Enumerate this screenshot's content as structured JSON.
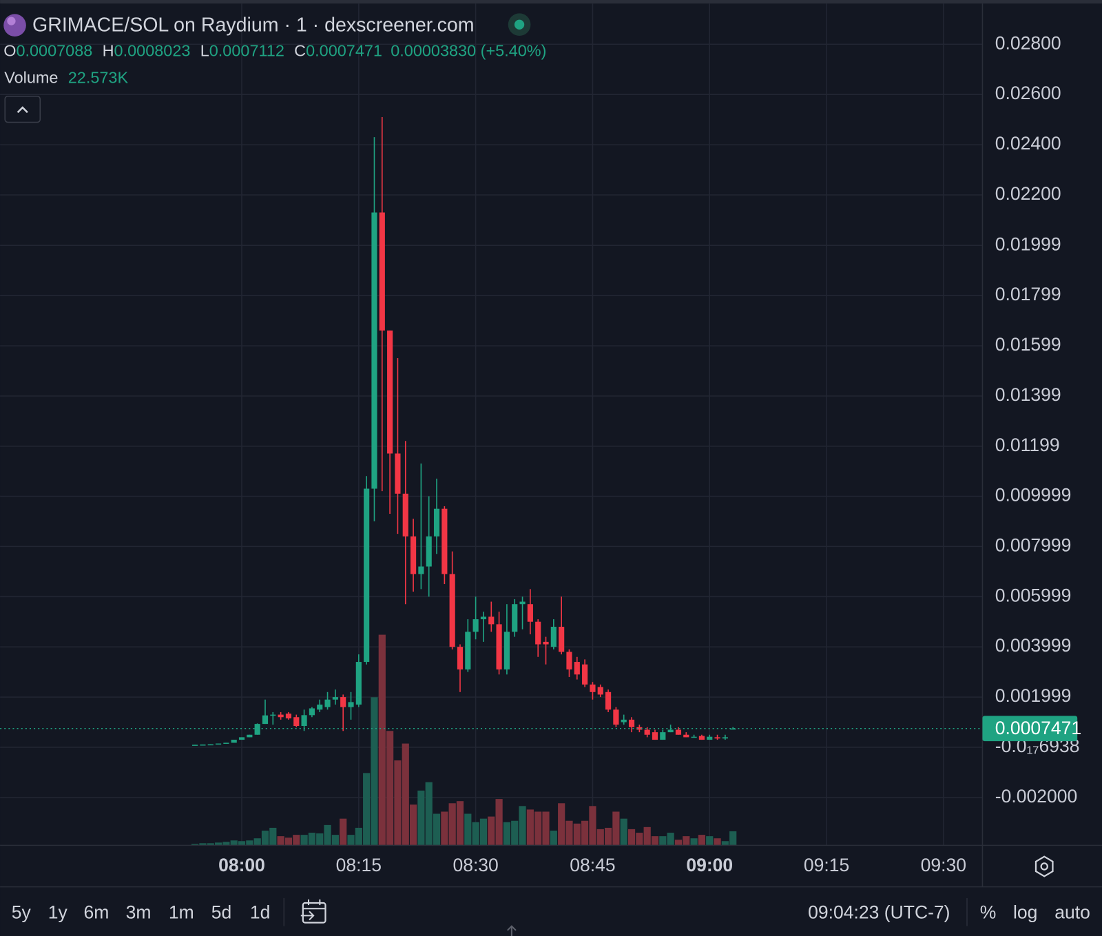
{
  "chart_data": {
    "type": "candlestick",
    "title": "GRIMACE/SOL on Raydium · 1 · dexscreener.com",
    "ohlc_letters": [
      "O",
      "H",
      "L",
      "C"
    ],
    "change_label": "0.00003830 (+5.40%)",
    "volume_name": "Volume",
    "volume_legend_label": "22.573K",
    "up_color": "#1fa382",
    "down_color": "#f23645",
    "volume_up_color": "#1d5e52",
    "volume_down_color": "#7b313c",
    "grid": true,
    "x": [
      "07:54",
      "07:55",
      "07:56",
      "07:57",
      "07:58",
      "07:59",
      "08:00",
      "08:01",
      "08:02",
      "08:03",
      "08:04",
      "08:05",
      "08:06",
      "08:07",
      "08:08",
      "08:09",
      "08:10",
      "08:11",
      "08:12",
      "08:13",
      "08:14",
      "08:15",
      "08:16",
      "08:17",
      "08:18",
      "08:19",
      "08:20",
      "08:21",
      "08:22",
      "08:23",
      "08:24",
      "08:25",
      "08:26",
      "08:27",
      "08:28",
      "08:29",
      "08:30",
      "08:31",
      "08:32",
      "08:33",
      "08:34",
      "08:35",
      "08:36",
      "08:37",
      "08:38",
      "08:39",
      "08:40",
      "08:41",
      "08:42",
      "08:43",
      "08:44",
      "08:45",
      "08:46",
      "08:47",
      "08:48",
      "08:49",
      "08:50",
      "08:51",
      "08:52",
      "08:53",
      "08:54",
      "08:55",
      "08:56",
      "08:57",
      "08:58",
      "08:59",
      "09:00",
      "09:01",
      "09:02",
      "09:03"
    ],
    "open": [
      9e-05,
      0.0001,
      0.00011,
      0.00012,
      0.00015,
      0.00018,
      0.0003,
      0.0004,
      0.0005,
      0.00093,
      0.00127,
      0.0013,
      0.00134,
      0.0012,
      0.00085,
      0.00128,
      0.0015,
      0.0016,
      0.0019,
      0.002,
      0.0016,
      0.0017,
      0.0034,
      0.0103,
      0.0213,
      0.0166,
      0.0117,
      0.0101,
      0.0084,
      0.0069,
      0.0072,
      0.0084,
      0.0095,
      0.0069,
      0.004,
      0.0031,
      0.0046,
      0.0051,
      0.0052,
      0.0049,
      0.0031,
      0.0046,
      0.0057,
      0.0057,
      0.005,
      0.0042,
      0.004,
      0.0048,
      0.0038,
      0.0034,
      0.0033,
      0.0025,
      0.0024,
      0.0022,
      0.0015,
      0.001,
      0.0011,
      0.0008,
      0.0007,
      0.0006,
      0.0003,
      0.0006,
      0.0007,
      0.0005,
      0.0004,
      0.00045,
      0.0003,
      0.0004,
      0.00035,
      0.0007088
    ],
    "high": [
      0.0001,
      0.00011,
      0.00012,
      0.00015,
      0.00018,
      0.0003,
      0.0004,
      0.0005,
      0.00095,
      0.0019,
      0.0014,
      0.0014,
      0.0014,
      0.0013,
      0.0015,
      0.0016,
      0.0019,
      0.0022,
      0.0023,
      0.0021,
      0.0022,
      0.0037,
      0.0108,
      0.0243,
      0.0251,
      0.0166,
      0.0155,
      0.0122,
      0.0091,
      0.0113,
      0.01,
      0.0107,
      0.0096,
      0.0078,
      0.0041,
      0.0051,
      0.006,
      0.0054,
      0.0058,
      0.0054,
      0.0057,
      0.0059,
      0.006,
      0.0063,
      0.0051,
      0.0044,
      0.0051,
      0.006,
      0.0039,
      0.0036,
      0.0035,
      0.0026,
      0.0025,
      0.0023,
      0.0016,
      0.0013,
      0.0012,
      0.0009,
      0.0008,
      0.0007,
      0.0007,
      0.0009,
      0.0008,
      0.0006,
      0.0005,
      0.0005,
      0.0005,
      0.0005,
      0.0005,
      0.0008023
    ],
    "low": [
      9e-05,
      0.0001,
      0.00011,
      0.00012,
      0.00015,
      0.00018,
      0.0003,
      0.0004,
      0.0005,
      0.00093,
      0.0009,
      0.0011,
      0.0011,
      0.0008,
      0.00065,
      0.0012,
      0.0014,
      0.0015,
      0.0017,
      0.00065,
      0.0011,
      0.0016,
      0.0033,
      0.009,
      0.0102,
      0.0093,
      0.0085,
      0.0057,
      0.0062,
      0.0063,
      0.006,
      0.0077,
      0.0065,
      0.0039,
      0.0022,
      0.003,
      0.0043,
      0.0042,
      0.0046,
      0.0029,
      0.0029,
      0.0044,
      0.0047,
      0.0045,
      0.0036,
      0.0033,
      0.0039,
      0.0037,
      0.0028,
      0.0027,
      0.0024,
      0.0019,
      0.002,
      0.0014,
      0.0008,
      0.0009,
      0.0006,
      0.0006,
      0.0004,
      0.0003,
      0.0003,
      0.0006,
      0.0005,
      0.0004,
      0.0004,
      0.0003,
      0.0003,
      0.0003,
      0.0003,
      0.0007112
    ],
    "close": [
      0.0001,
      0.00011,
      0.00012,
      0.00015,
      0.00018,
      0.0003,
      0.0004,
      0.0005,
      0.00093,
      0.00127,
      0.0013,
      0.0012,
      0.00115,
      0.00085,
      0.00128,
      0.00155,
      0.0017,
      0.0019,
      0.002,
      0.0016,
      0.0018,
      0.0034,
      0.0103,
      0.0213,
      0.0166,
      0.0117,
      0.0101,
      0.0084,
      0.0069,
      0.0072,
      0.0084,
      0.0095,
      0.0069,
      0.004,
      0.0031,
      0.0046,
      0.0051,
      0.0052,
      0.0049,
      0.0031,
      0.0046,
      0.0057,
      0.0058,
      0.005,
      0.0041,
      0.0041,
      0.0048,
      0.0038,
      0.0031,
      0.0029,
      0.0025,
      0.0022,
      0.0021,
      0.0015,
      0.0009,
      0.0011,
      0.0008,
      0.0007,
      0.0005,
      0.0003,
      0.0006,
      0.0007,
      0.0005,
      0.0004,
      0.00042,
      0.0003,
      0.00042,
      0.00035,
      0.0004,
      0.0007471
    ],
    "volume": [
      2300,
      3400,
      3400,
      4500,
      5600,
      7900,
      6800,
      7900,
      11300,
      23700,
      28200,
      14700,
      12400,
      16900,
      16900,
      20300,
      19200,
      32700,
      16900,
      42900,
      16900,
      28200,
      116300,
      238200,
      338700,
      184000,
      136600,
      163700,
      65500,
      88100,
      101600,
      50800,
      54200,
      67700,
      71100,
      50800,
      37300,
      42900,
      46300,
      74500,
      37300,
      39500,
      63200,
      57600,
      54200,
      54200,
      23700,
      67700,
      39500,
      35000,
      39500,
      63200,
      26000,
      28200,
      54200,
      42900,
      26000,
      20300,
      29400,
      14700,
      14700,
      20300,
      9000,
      14700,
      11300,
      16900,
      14700,
      11300,
      6800,
      22573
    ],
    "volume_ylim": [
      0,
      400000
    ],
    "xlim": [
      "07:29",
      "09:35"
    ],
    "xticks": [
      "08:00",
      "08:15",
      "08:30",
      "08:45",
      "09:00",
      "09:15",
      "09:30"
    ],
    "ylim": [
      -0.003906,
      0.029623
    ],
    "yticks": [
      {
        "value": 0.028,
        "label": "0.02800"
      },
      {
        "value": 0.026,
        "label": "0.02600"
      },
      {
        "value": 0.024,
        "label": "0.02400"
      },
      {
        "value": 0.022,
        "label": "0.02200"
      },
      0.01999,
      0.01799,
      0.01599,
      0.01399,
      0.01199,
      0.009999,
      0.007999,
      0.005999,
      0.003999,
      0.001999,
      {
        "value": -6.938e-19,
        "label": "-0.0₁₇6938"
      },
      {
        "value": -0.002,
        "label": "-0.002000"
      }
    ]
  },
  "toolbar": {
    "ranges": [
      "5y",
      "1y",
      "6m",
      "3m",
      "1m",
      "5d",
      "1d"
    ],
    "clock": "09:04:23 (UTC-7)",
    "options": [
      "%",
      "log",
      "auto"
    ]
  }
}
